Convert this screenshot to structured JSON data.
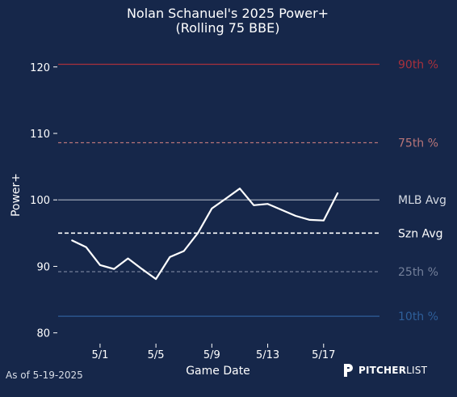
{
  "chart_data": {
    "type": "line",
    "title": "Nolan Schanuel's 2025 Power+",
    "subtitle": "(Rolling 75 BBE)",
    "xlabel": "Game Date",
    "ylabel": "Power+",
    "ylim": [
      78.5,
      123.5
    ],
    "yticks": [
      80,
      90,
      100,
      110,
      120
    ],
    "xticks": [
      "5/1",
      "5/5",
      "5/9",
      "5/13",
      "5/17"
    ],
    "xlim": [
      "2025-04-28",
      "2025-05-21"
    ],
    "grid": false,
    "series": [
      {
        "x": [
          "2025-04-29",
          "2025-04-30",
          "2025-05-01",
          "2025-05-02",
          "2025-05-03",
          "2025-05-04",
          "2025-05-05",
          "2025-05-06",
          "2025-05-07",
          "2025-05-08",
          "2025-05-09",
          "2025-05-10",
          "2025-05-11",
          "2025-05-12",
          "2025-05-13",
          "2025-05-14",
          "2025-05-15",
          "2025-05-16",
          "2025-05-17",
          "2025-05-18",
          "2025-05-19"
        ],
        "values": [
          93.9,
          92.9,
          90.2,
          89.6,
          91.2,
          89.6,
          88.1,
          91.4,
          92.3,
          95.0,
          98.7,
          100.2,
          101.7,
          99.2,
          99.4,
          98.5,
          97.6,
          97.0,
          96.9,
          101.0,
          null
        ],
        "color": "#ffffff"
      }
    ],
    "reference_lines": [
      {
        "label": "90th %",
        "value": 120.4,
        "color": "#a8303c",
        "style": "solid"
      },
      {
        "label": "75th %",
        "value": 108.6,
        "color": "#b87578",
        "style": "dashed"
      },
      {
        "label": "MLB Avg",
        "value": 100,
        "color": "#9aa4b4",
        "style": "solid"
      },
      {
        "label": "Szn Avg",
        "value": 95.0,
        "color": "#ffffff",
        "style": "dashed"
      },
      {
        "label": "25th %",
        "value": 89.2,
        "color": "#737f99",
        "style": "dashed"
      },
      {
        "label": "10th %",
        "value": 82.5,
        "color": "#2e5f9a",
        "style": "solid"
      }
    ]
  },
  "footer": {
    "as_of": "As of 5-19-2025",
    "brand_prefix": "PITCHER",
    "brand_suffix": "LIST"
  }
}
